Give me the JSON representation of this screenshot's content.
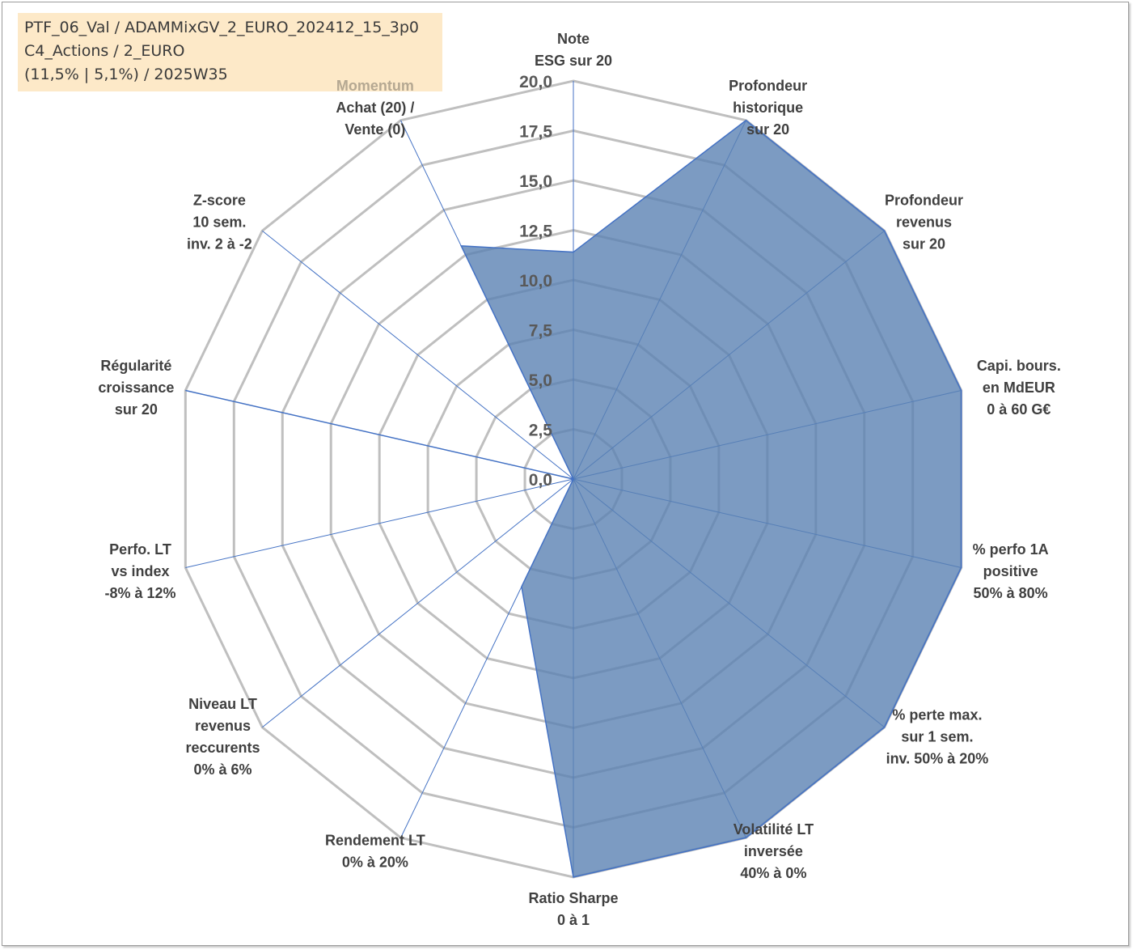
{
  "info": {
    "line1": "PTF_06_Val / ADAMMixGV_2_EURO_202412_15_3p0",
    "line2": "C4_Actions / 2_EURO",
    "line3": "(11,5% | 5,1%) / 2025W35"
  },
  "colors": {
    "fill": "#5b82b3",
    "stroke": "#4472c4",
    "grid": "#bfbfbf",
    "spoke": "#4472c4",
    "momentum": "#b5a892"
  },
  "chart_data": {
    "type": "radar",
    "rmin": 0,
    "rmax": 20,
    "ticks": [
      "0,0",
      "2,5",
      "5,0",
      "7,5",
      "10,0",
      "12,5",
      "15,0",
      "17,5",
      "20,0"
    ],
    "tick_values": [
      0,
      2.5,
      5,
      7.5,
      10,
      12.5,
      15,
      17.5,
      20
    ],
    "axes": [
      {
        "lines": [
          "Note",
          "ESG sur 20"
        ]
      },
      {
        "lines": [
          "Profondeur",
          "historique",
          "sur 20"
        ]
      },
      {
        "lines": [
          "Profondeur",
          "revenus",
          "sur 20"
        ]
      },
      {
        "lines": [
          "Capi. bours.",
          "en MdEUR",
          "0 à 60 G€"
        ]
      },
      {
        "lines": [
          "% perfo 1A",
          "positive",
          "50% à 80%"
        ]
      },
      {
        "lines": [
          "% perte max.",
          "sur 1 sem.",
          "inv. 50% à 20%"
        ]
      },
      {
        "lines": [
          "Volatilité LT",
          "inversée",
          "40% à 0%"
        ]
      },
      {
        "lines": [
          "Ratio Sharpe",
          "0 à 1"
        ]
      },
      {
        "lines": [
          "Rendement LT",
          "0% à 20%"
        ]
      },
      {
        "lines": [
          "Niveau LT",
          "revenus",
          "reccurents",
          "0% à 6%"
        ]
      },
      {
        "lines": [
          "Perfo. LT",
          "vs index",
          "-8% à 12%"
        ]
      },
      {
        "lines": [
          "Régularité",
          "croissance",
          "sur 20"
        ]
      },
      {
        "lines": [
          "Z-score",
          "10 sem.",
          "inv. 2 à -2"
        ]
      },
      {
        "lines": [
          "Momentum",
          "Achat (20) /",
          "Vente (0)"
        ]
      }
    ],
    "values": [
      11.4,
      20,
      20,
      20,
      20,
      20,
      20,
      20,
      6.0,
      0,
      0,
      20,
      0,
      13.0
    ],
    "grid": true,
    "legend": "none"
  }
}
